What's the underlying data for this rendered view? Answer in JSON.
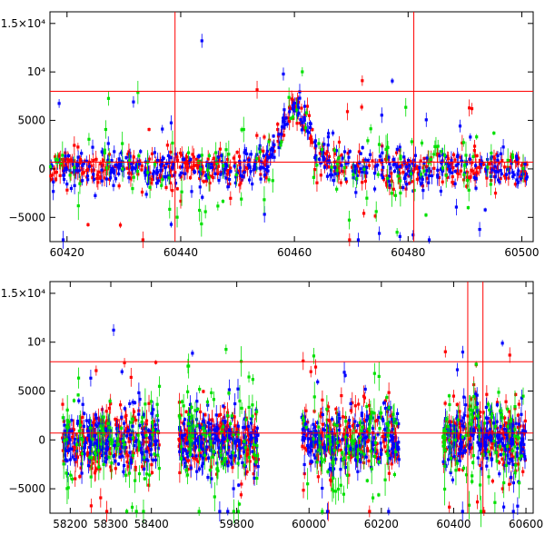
{
  "chart_data": [
    {
      "type": "scatter",
      "panel": "top",
      "xlim": [
        60417,
        60502
      ],
      "ylim": [
        -7500,
        16200
      ],
      "xticks": [
        {
          "value": 60420,
          "label": "60420"
        },
        {
          "value": 60440,
          "label": "60440"
        },
        {
          "value": 60460,
          "label": "60460"
        },
        {
          "value": 60480,
          "label": "60480"
        },
        {
          "value": 60500,
          "label": "60500"
        }
      ],
      "yticks": [
        {
          "value": -5000,
          "label": "−5000"
        },
        {
          "value": 0,
          "label": "0"
        },
        {
          "value": 5000,
          "label": "5000"
        },
        {
          "value": 10000,
          "label": "10⁴"
        },
        {
          "value": 15000,
          "label": "1.5×10⁴"
        }
      ],
      "hlines": [
        8000,
        700
      ],
      "vlines": [
        60439,
        60481
      ],
      "series_colors": [
        "#ff0000",
        "#0000ff",
        "#00e000"
      ],
      "description": "Light curve with error bars, three colored series; peak near 60460"
    },
    {
      "type": "scatter",
      "panel": "bottom",
      "segments": [
        {
          "xlim": [
            58150,
            58450
          ]
        },
        {
          "xlim": [
            59620,
            60620
          ]
        }
      ],
      "ylim": [
        -7500,
        16200
      ],
      "xticks": [
        {
          "value": 58200,
          "label": "58200",
          "segment": 0
        },
        {
          "value": 58300,
          "label": "58300",
          "segment": 0
        },
        {
          "value": 58400,
          "label": "58400",
          "segment": 0
        },
        {
          "value": 59800,
          "label": "59800",
          "segment": 1
        },
        {
          "value": 60000,
          "label": "60000",
          "segment": 1
        },
        {
          "value": 60200,
          "label": "60200",
          "segment": 1
        },
        {
          "value": 60400,
          "label": "60400",
          "segment": 1
        },
        {
          "value": 60600,
          "label": "60600",
          "segment": 1
        }
      ],
      "yticks": [
        {
          "value": -5000,
          "label": "−5000"
        },
        {
          "value": 0,
          "label": "0"
        },
        {
          "value": 5000,
          "label": "5000"
        },
        {
          "value": 10000,
          "label": "10⁴"
        },
        {
          "value": 15000,
          "label": "1.5×10⁴"
        }
      ],
      "hlines": [
        8000,
        700
      ],
      "vlines": [
        60439,
        60481
      ],
      "data_ranges": [
        [
          58180,
          58420
        ],
        [
          59640,
          59860
        ],
        [
          59980,
          60250
        ],
        [
          60370,
          60600
        ]
      ],
      "series_colors": [
        "#ff0000",
        "#0000ff",
        "#00e000"
      ]
    }
  ]
}
